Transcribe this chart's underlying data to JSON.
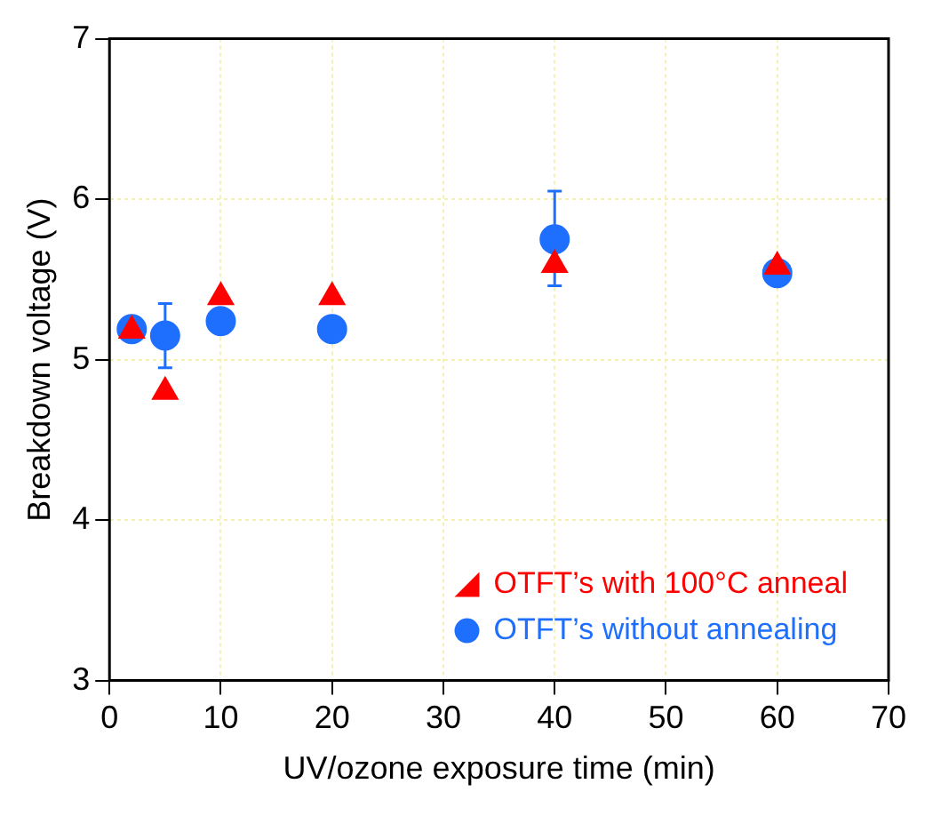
{
  "chart_data": {
    "type": "scatter",
    "xlabel": "UV/ozone exposure time (min)",
    "ylabel": "Breakdown voltage (V)",
    "xlim": [
      0,
      70
    ],
    "xticks": [
      0,
      10,
      20,
      30,
      40,
      50,
      60,
      70
    ],
    "ylim": [
      3,
      7
    ],
    "yticks": [
      3,
      4,
      5,
      6,
      7
    ],
    "grid": true,
    "legend": "bottom right",
    "series": [
      {
        "name": "OTFT’s with 100°C anneal",
        "color": "#ff0000",
        "marker": "triangle",
        "x": [
          2,
          5,
          10,
          20,
          40,
          60
        ],
        "values": [
          5.18,
          4.8,
          5.39,
          5.39,
          5.59,
          5.58
        ]
      },
      {
        "name": "OTFT’s without annealing",
        "color": "#1f6fff",
        "marker": "circle",
        "x": [
          2,
          5,
          10,
          20,
          40,
          60
        ],
        "values": [
          5.19,
          5.15,
          5.24,
          5.19,
          5.75,
          5.54
        ],
        "errors": [
          null,
          [
            4.95,
            5.35
          ],
          null,
          null,
          [
            5.46,
            6.05
          ],
          null
        ]
      }
    ]
  }
}
